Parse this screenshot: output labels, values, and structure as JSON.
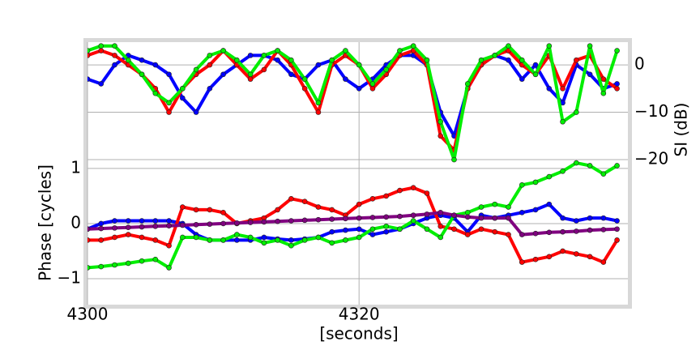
{
  "chart_data": {
    "type": "scatter",
    "xlabel": "[seconds]",
    "ylabel": "Phase [cycles]",
    "y2label": "SI (dB)",
    "x": [
      4300,
      4301,
      4302,
      4303,
      4304,
      4305,
      4306,
      4307,
      4308,
      4309,
      4310,
      4311,
      4312,
      4313,
      4314,
      4315,
      4316,
      4317,
      4318,
      4319,
      4320,
      4321,
      4322,
      4323,
      4324,
      4325,
      4326,
      4327,
      4328,
      4329,
      4330,
      4331,
      4332,
      4333,
      4334,
      4335,
      4336,
      4337,
      4338,
      4339
    ],
    "xlim": [
      4300,
      4339.8
    ],
    "xticks": [
      4300,
      4320
    ],
    "ylim": [
      -1.47,
      3.29
    ],
    "yticks": [
      {
        "value": -1,
        "label": "−1"
      },
      0,
      1
    ],
    "y2lim": [
      -50.6,
      4.8
    ],
    "y2ticks": [
      {
        "value": -20,
        "label": "−20"
      },
      {
        "value": -10,
        "label": "−10"
      },
      0
    ],
    "grid": true,
    "series": [
      {
        "color": "#0000ff",
        "axis": "y2",
        "values": [
          -3,
          -4,
          0,
          2,
          1,
          0,
          -2,
          -7,
          -10,
          -5,
          -2,
          0,
          2,
          2,
          1,
          -2,
          -3,
          0,
          1,
          -3,
          -5,
          -3,
          0,
          2,
          2,
          0,
          -10,
          -15,
          -5,
          0,
          2,
          1,
          -3,
          0,
          -5,
          -8,
          0,
          -2,
          -5,
          -4
        ]
      },
      {
        "color": "#ff0000",
        "axis": "y2",
        "values": [
          2,
          3,
          2,
          0,
          -2,
          -5,
          -10,
          -5,
          -2,
          0,
          3,
          0,
          -3,
          -1,
          3,
          0,
          -5,
          -10,
          0,
          2,
          0,
          -5,
          -2,
          2,
          3,
          0,
          -15,
          -18,
          -5,
          0,
          2,
          3,
          0,
          -2,
          2,
          -5,
          1,
          2,
          -3,
          -5
        ]
      },
      {
        "color": "#00ee00",
        "axis": "y2",
        "values": [
          3,
          4,
          4,
          1,
          -2,
          -6,
          -8,
          -5,
          -1,
          2,
          3,
          1,
          -2,
          2,
          3,
          1,
          -3,
          -8,
          1,
          3,
          0,
          -4,
          -1,
          3,
          4,
          1,
          -12,
          -20,
          -4,
          1,
          2,
          4,
          1,
          -2,
          4,
          -12,
          -10,
          4,
          -6,
          3
        ]
      },
      {
        "color": "#0000ff",
        "values": [
          -0.1,
          0,
          0.05,
          0.05,
          0.05,
          0.05,
          0.05,
          0,
          -0.2,
          -0.3,
          -0.3,
          -0.3,
          -0.3,
          -0.25,
          -0.28,
          -0.3,
          -0.28,
          -0.25,
          -0.15,
          -0.12,
          -0.1,
          -0.2,
          -0.15,
          -0.1,
          0,
          0.1,
          0.15,
          0.1,
          -0.15,
          0.15,
          0.1,
          0.15,
          0.2,
          0.25,
          0.35,
          0.1,
          0.05,
          0.1,
          0.1,
          0.05
        ]
      },
      {
        "color": "#ff0000",
        "values": [
          -0.3,
          -0.3,
          -0.25,
          -0.2,
          -0.25,
          -0.3,
          -0.4,
          0.3,
          0.25,
          0.25,
          0.2,
          0,
          0.05,
          0.1,
          0.25,
          0.45,
          0.4,
          0.3,
          0.25,
          0.15,
          0.35,
          0.45,
          0.5,
          0.6,
          0.65,
          0.55,
          -0.05,
          -0.1,
          -0.2,
          -0.1,
          -0.15,
          -0.2,
          -0.7,
          -0.65,
          -0.6,
          -0.5,
          -0.55,
          -0.6,
          -0.7,
          -0.3
        ]
      },
      {
        "color": "#00ee00",
        "values": [
          -0.8,
          -0.78,
          -0.75,
          -0.72,
          -0.68,
          -0.65,
          -0.8,
          -0.25,
          -0.25,
          -0.3,
          -0.3,
          -0.2,
          -0.25,
          -0.35,
          -0.3,
          -0.4,
          -0.3,
          -0.25,
          -0.35,
          -0.3,
          -0.25,
          -0.1,
          -0.05,
          -0.1,
          0.05,
          -0.1,
          -0.25,
          0.15,
          0.2,
          0.3,
          0.35,
          0.3,
          0.7,
          0.75,
          0.85,
          0.95,
          1.1,
          1.05,
          0.9,
          1.05
        ]
      },
      {
        "color": "#800080",
        "values": [
          -0.1,
          -0.09,
          -0.08,
          -0.07,
          -0.06,
          -0.05,
          -0.04,
          -0.03,
          -0.02,
          -0.01,
          0,
          0.01,
          0.02,
          0.03,
          0.04,
          0.05,
          0.06,
          0.07,
          0.08,
          0.09,
          0.1,
          0.11,
          0.12,
          0.13,
          0.15,
          0.17,
          0.2,
          0.15,
          0.12,
          0.1,
          0.1,
          0.1,
          -0.2,
          -0.18,
          -0.16,
          -0.15,
          -0.14,
          -0.12,
          -0.11,
          -0.1
        ]
      }
    ]
  }
}
